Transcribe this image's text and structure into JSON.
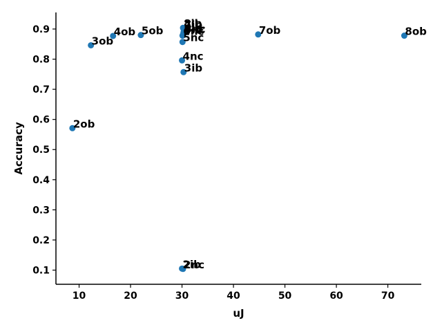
{
  "chart_data": {
    "type": "scatter",
    "title": "",
    "xlabel": "uJ",
    "ylabel": "Accuracy",
    "xlim": [
      5.5,
      76.5
    ],
    "ylim": [
      0.053,
      0.955
    ],
    "xticks": [
      10,
      20,
      30,
      40,
      50,
      60,
      70
    ],
    "yticks": [
      0.1,
      0.2,
      0.3,
      0.4,
      0.5,
      0.6,
      0.7,
      0.8,
      0.9
    ],
    "grid": false,
    "legend": "none",
    "marker_color": "#1f77b4",
    "points": [
      {
        "label": "8ob",
        "x": 73.2,
        "y": 0.878
      },
      {
        "label": "7ob",
        "x": 44.8,
        "y": 0.882
      },
      {
        "label": "5ob",
        "x": 22.0,
        "y": 0.88
      },
      {
        "label": "4ob",
        "x": 16.6,
        "y": 0.877
      },
      {
        "label": "3ob",
        "x": 12.3,
        "y": 0.846
      },
      {
        "label": "2ob",
        "x": 8.7,
        "y": 0.571
      },
      {
        "label": "8ib",
        "x": 30.2,
        "y": 0.904
      },
      {
        "label": "7ib",
        "x": 30.3,
        "y": 0.9
      },
      {
        "label": "6ib",
        "x": 30.3,
        "y": 0.889
      },
      {
        "label": "5ib",
        "x": 30.2,
        "y": 0.882
      },
      {
        "label": "8nc",
        "x": 30.4,
        "y": 0.886
      },
      {
        "label": "7nc",
        "x": 30.3,
        "y": 0.884
      },
      {
        "label": "6nc",
        "x": 30.1,
        "y": 0.878
      },
      {
        "label": "5nc",
        "x": 30.1,
        "y": 0.857
      },
      {
        "label": "4nc",
        "x": 30.0,
        "y": 0.796
      },
      {
        "label": "3ib",
        "x": 30.3,
        "y": 0.757
      },
      {
        "label": "2ib",
        "x": 30.0,
        "y": 0.105
      },
      {
        "label": "2nc",
        "x": 30.2,
        "y": 0.104
      }
    ]
  }
}
